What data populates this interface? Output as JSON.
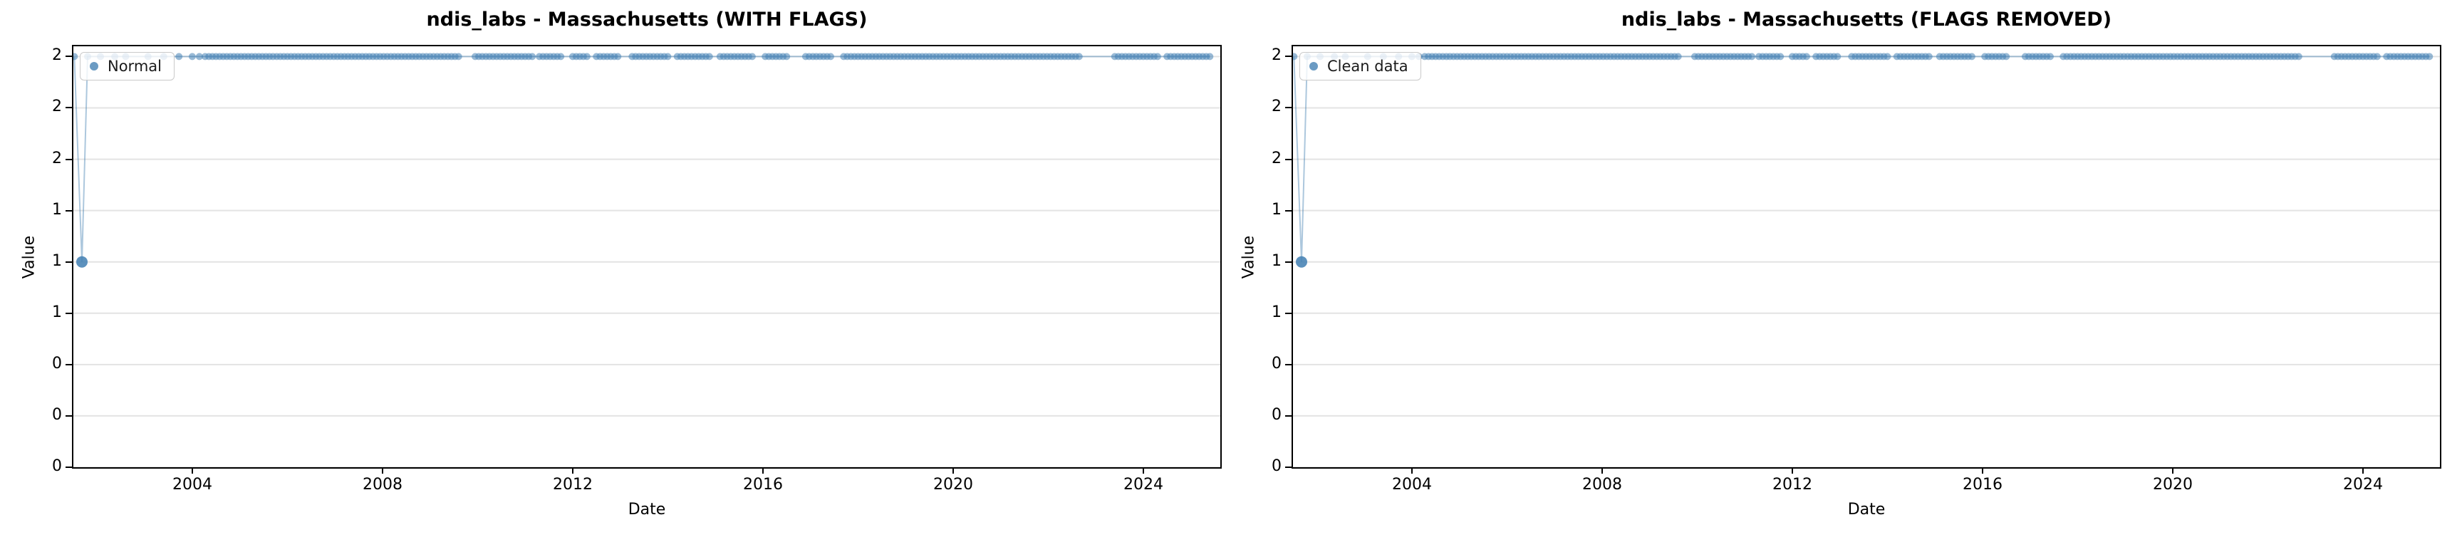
{
  "figure": {
    "background": "#ffffff"
  },
  "chart_data": [
    {
      "type": "scatter",
      "title": "ndis_labs - Massachusetts (WITH FLAGS)",
      "xlabel": "Date",
      "ylabel": "Value",
      "legend": {
        "label": "Normal",
        "position": "upper-left"
      },
      "grid": "horizontal",
      "xlim": [
        2001.5,
        2025.62
      ],
      "ylim": [
        0,
        2.05
      ],
      "xticks": [
        {
          "v": 2004,
          "label": "2004"
        },
        {
          "v": 2008,
          "label": "2008"
        },
        {
          "v": 2012,
          "label": "2012"
        },
        {
          "v": 2016,
          "label": "2016"
        },
        {
          "v": 2020,
          "label": "2020"
        },
        {
          "v": 2024,
          "label": "2024"
        }
      ],
      "yticks": [
        {
          "v": 2.0,
          "label": "2"
        },
        {
          "v": 1.75,
          "label": "2"
        },
        {
          "v": 1.5,
          "label": "2"
        },
        {
          "v": 1.25,
          "label": "1"
        },
        {
          "v": 1.0,
          "label": "1"
        },
        {
          "v": 0.75,
          "label": "1"
        },
        {
          "v": 0.5,
          "label": "0"
        },
        {
          "v": 0.25,
          "label": "0"
        },
        {
          "v": 0.0,
          "label": "0"
        }
      ],
      "colors": {
        "marker": "#4682b4",
        "line": "#4682b4",
        "grid": "#b0b0b0"
      },
      "series": {
        "name": "Normal",
        "y_value": 2,
        "anomaly_point": {
          "x": 2001.68,
          "y": 1
        },
        "head_points_x": [
          2001.52,
          2001.8,
          2002.07,
          2002.37,
          2002.6,
          2003.07,
          2003.4,
          2003.72,
          2004.0,
          2004.15,
          2004.27
        ],
        "dense_segments_x": [
          [
            2004.35,
            2009.6
          ],
          [
            2009.95,
            2011.15
          ],
          [
            2011.3,
            2011.75
          ],
          [
            2012.0,
            2012.35
          ],
          [
            2012.5,
            2012.95
          ],
          [
            2013.25,
            2014.0
          ],
          [
            2014.2,
            2014.9
          ],
          [
            2015.1,
            2015.8
          ],
          [
            2016.05,
            2016.55
          ],
          [
            2016.9,
            2017.45
          ],
          [
            2017.7,
            2022.7
          ],
          [
            2023.4,
            2024.3
          ],
          [
            2024.5,
            2025.45
          ]
        ],
        "dense_step": 0.075
      }
    },
    {
      "type": "scatter",
      "title": "ndis_labs - Massachusetts (FLAGS REMOVED)",
      "xlabel": "Date",
      "ylabel": "Value",
      "legend": {
        "label": "Clean data",
        "position": "upper-left"
      },
      "grid": "horizontal",
      "xlim": [
        2001.5,
        2025.62
      ],
      "ylim": [
        0,
        2.05
      ],
      "xticks": [
        {
          "v": 2004,
          "label": "2004"
        },
        {
          "v": 2008,
          "label": "2008"
        },
        {
          "v": 2012,
          "label": "2012"
        },
        {
          "v": 2016,
          "label": "2016"
        },
        {
          "v": 2020,
          "label": "2020"
        },
        {
          "v": 2024,
          "label": "2024"
        }
      ],
      "yticks": [
        {
          "v": 2.0,
          "label": "2"
        },
        {
          "v": 1.75,
          "label": "2"
        },
        {
          "v": 1.5,
          "label": "2"
        },
        {
          "v": 1.25,
          "label": "1"
        },
        {
          "v": 1.0,
          "label": "1"
        },
        {
          "v": 0.75,
          "label": "1"
        },
        {
          "v": 0.5,
          "label": "0"
        },
        {
          "v": 0.25,
          "label": "0"
        },
        {
          "v": 0.0,
          "label": "0"
        }
      ],
      "colors": {
        "marker": "#4682b4",
        "line": "#4682b4",
        "grid": "#b0b0b0"
      },
      "series": {
        "name": "Clean data",
        "y_value": 2,
        "anomaly_point": {
          "x": 2001.68,
          "y": 1
        },
        "head_points_x": [
          2001.52,
          2001.8,
          2002.07,
          2002.37,
          2002.6,
          2003.07,
          2003.4,
          2003.72,
          2004.0,
          2004.15,
          2004.27
        ],
        "dense_segments_x": [
          [
            2004.35,
            2009.6
          ],
          [
            2009.95,
            2011.15
          ],
          [
            2011.3,
            2011.75
          ],
          [
            2012.0,
            2012.35
          ],
          [
            2012.5,
            2012.95
          ],
          [
            2013.25,
            2014.0
          ],
          [
            2014.2,
            2014.9
          ],
          [
            2015.1,
            2015.8
          ],
          [
            2016.05,
            2016.55
          ],
          [
            2016.9,
            2017.45
          ],
          [
            2017.7,
            2022.7
          ],
          [
            2023.4,
            2024.3
          ],
          [
            2024.5,
            2025.45
          ]
        ],
        "dense_step": 0.075
      }
    }
  ]
}
